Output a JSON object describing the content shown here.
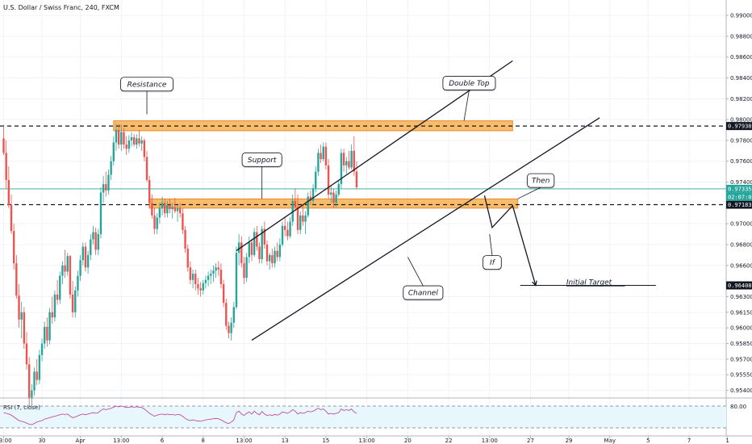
{
  "colors": {
    "up": "#26a69a",
    "down": "#ef5350",
    "zone": "#f7a53a",
    "last_price": "#26a69a",
    "rsi_line": "#c0379c",
    "rsi_band": "#e7f7fb",
    "line": "#131722"
  },
  "header": {
    "title": "U.S. Dollar / Swiss Franc, 240, FXCM"
  },
  "chart_data": {
    "type": "candlestick",
    "title": "U.S. Dollar / Swiss Franc, 240, FXCM",
    "ylim": [
      0.95327,
      0.99148
    ],
    "y_ticks": [
      "0.99000",
      "0.98800",
      "0.98600",
      "0.98400",
      "0.98200",
      "0.98000",
      "0.97800",
      "0.97600",
      "0.97400",
      "0.97000",
      "0.96800",
      "0.96600",
      "0.96300",
      "0.96150",
      "0.96000",
      "0.95850",
      "0.95700",
      "0.95550",
      "0.95400"
    ],
    "x_ticks": [
      "13:00",
      "30",
      "Apr",
      "13:00",
      "6",
      "8",
      "13:00",
      "13",
      "15",
      "13:00",
      "20",
      "22",
      "13:00",
      "27",
      "29",
      "May",
      "5",
      "7",
      "1"
    ],
    "x_tick_index": [
      0,
      15,
      30,
      46,
      62,
      78,
      94,
      110,
      126,
      142,
      158,
      174,
      190,
      206,
      221,
      237,
      252,
      268,
      283
    ],
    "levels": {
      "resistance": "0.97938",
      "support": "0.97183",
      "initial_target": "0.96408"
    },
    "last_price": {
      "value": "0.97335",
      "countdown": "02:07:01"
    },
    "zones": [
      {
        "label": "resistance-zone",
        "i0": 43,
        "i1": 199,
        "y0": 0.97988,
        "y1": 0.97893
      },
      {
        "label": "support-zone",
        "i0": 57,
        "i1": 201,
        "y0": 0.97238,
        "y1": 0.9715
      }
    ],
    "dashed_levels": [
      0.97938,
      0.97183
    ],
    "target_line": {
      "i0": 202,
      "i1": 255,
      "y": 0.96408
    },
    "channel": [
      {
        "i0": 91,
        "y0": 0.96742,
        "i1": 199,
        "y1": 0.98564
      },
      {
        "i0": 97,
        "y0": 0.95882,
        "i1": 233,
        "y1": 0.98017
      }
    ],
    "projection": [
      [
        188,
        0.9727
      ],
      [
        191,
        0.96964
      ],
      [
        199,
        0.97173
      ],
      [
        208,
        0.96408
      ]
    ],
    "annotations": [
      {
        "text": "Resistance",
        "i": 56,
        "y": 0.9834,
        "pi": 56,
        "py": 0.9805
      },
      {
        "text": "Double Top",
        "i": 182,
        "y": 0.9835,
        "pi": 180,
        "py": 0.9799
      },
      {
        "text": "Support",
        "i": 101,
        "y": 0.97615,
        "pi": 101,
        "py": 0.9724
      },
      {
        "text": "Then",
        "i": 210,
        "y": 0.97415,
        "pi": 201,
        "py": 0.9724
      },
      {
        "text": "If",
        "i": 191,
        "y": 0.96628,
        "pi": 190,
        "py": 0.969
      },
      {
        "text": "Channel",
        "i": 164,
        "y": 0.96338,
        "pi": 158,
        "py": 0.9668
      },
      {
        "text": "Initial Target",
        "i": 220,
        "y": 0.9644,
        "box": false
      }
    ],
    "candles": [
      [
        0.9782,
        0.9795,
        0.9766,
        0.9768
      ],
      [
        0.9768,
        0.978,
        0.9734,
        0.9742
      ],
      [
        0.9742,
        0.9755,
        0.9715,
        0.9718
      ],
      [
        0.9718,
        0.9728,
        0.969,
        0.9693
      ],
      [
        0.9693,
        0.97,
        0.9656,
        0.9662
      ],
      [
        0.9662,
        0.967,
        0.9628,
        0.9631
      ],
      [
        0.9631,
        0.9642,
        0.96,
        0.9608
      ],
      [
        0.9608,
        0.9625,
        0.959,
        0.9615
      ],
      [
        0.9615,
        0.962,
        0.958,
        0.9585
      ],
      [
        0.9585,
        0.9596,
        0.956,
        0.9565
      ],
      [
        0.9565,
        0.9572,
        0.9525,
        0.9532
      ],
      [
        0.9532,
        0.9546,
        0.952,
        0.954
      ],
      [
        0.954,
        0.9562,
        0.9535,
        0.9558
      ],
      [
        0.9558,
        0.957,
        0.9545,
        0.955
      ],
      [
        0.955,
        0.9579,
        0.9546,
        0.9574
      ],
      [
        0.9574,
        0.959,
        0.9568,
        0.9585
      ],
      [
        0.9585,
        0.9606,
        0.958,
        0.9601
      ],
      [
        0.9601,
        0.961,
        0.9582,
        0.9588
      ],
      [
        0.9588,
        0.9619,
        0.9584,
        0.9615
      ],
      [
        0.9615,
        0.963,
        0.9604,
        0.961
      ],
      [
        0.961,
        0.9636,
        0.9606,
        0.9632
      ],
      [
        0.9632,
        0.9646,
        0.9622,
        0.9627
      ],
      [
        0.9627,
        0.9654,
        0.9623,
        0.965
      ],
      [
        0.965,
        0.9664,
        0.9642,
        0.966
      ],
      [
        0.966,
        0.9675,
        0.9648,
        0.9654
      ],
      [
        0.9654,
        0.9672,
        0.965,
        0.9669
      ],
      [
        0.9669,
        0.967,
        0.9628,
        0.9632
      ],
      [
        0.9632,
        0.9645,
        0.961,
        0.9615
      ],
      [
        0.9615,
        0.964,
        0.961,
        0.9636
      ],
      [
        0.9636,
        0.9655,
        0.963,
        0.965
      ],
      [
        0.965,
        0.967,
        0.9645,
        0.9665
      ],
      [
        0.9665,
        0.9682,
        0.966,
        0.9678
      ],
      [
        0.9678,
        0.9682,
        0.9654,
        0.9658
      ],
      [
        0.9658,
        0.9674,
        0.9652,
        0.967
      ],
      [
        0.967,
        0.969,
        0.9665,
        0.9685
      ],
      [
        0.9685,
        0.9698,
        0.968,
        0.9692
      ],
      [
        0.9692,
        0.9696,
        0.967,
        0.9675
      ],
      [
        0.9675,
        0.9695,
        0.967,
        0.969
      ],
      [
        0.969,
        0.9735,
        0.9686,
        0.973
      ],
      [
        0.973,
        0.9746,
        0.972,
        0.9738
      ],
      [
        0.9738,
        0.975,
        0.9726,
        0.9732
      ],
      [
        0.9732,
        0.9752,
        0.9728,
        0.9747
      ],
      [
        0.9747,
        0.9765,
        0.9742,
        0.976
      ],
      [
        0.976,
        0.9784,
        0.9756,
        0.9778
      ],
      [
        0.9778,
        0.9796,
        0.977,
        0.979
      ],
      [
        0.979,
        0.9796,
        0.9772,
        0.9776
      ],
      [
        0.9776,
        0.9795,
        0.977,
        0.9788
      ],
      [
        0.9788,
        0.9792,
        0.9772,
        0.9776
      ],
      [
        0.9776,
        0.9784,
        0.9766,
        0.9772
      ],
      [
        0.9772,
        0.9785,
        0.9768,
        0.978
      ],
      [
        0.978,
        0.9788,
        0.9774,
        0.9783
      ],
      [
        0.9783,
        0.9786,
        0.9774,
        0.9776
      ],
      [
        0.9776,
        0.9786,
        0.9772,
        0.9782
      ],
      [
        0.9782,
        0.979,
        0.9774,
        0.9777
      ],
      [
        0.9777,
        0.9784,
        0.977,
        0.978
      ],
      [
        0.978,
        0.9782,
        0.976,
        0.9764
      ],
      [
        0.9764,
        0.977,
        0.974,
        0.9742
      ],
      [
        0.9742,
        0.9746,
        0.9715,
        0.972
      ],
      [
        0.972,
        0.9728,
        0.9705,
        0.9708
      ],
      [
        0.9708,
        0.9715,
        0.969,
        0.9695
      ],
      [
        0.9695,
        0.971,
        0.969,
        0.9706
      ],
      [
        0.9706,
        0.972,
        0.97,
        0.9715
      ],
      [
        0.9715,
        0.9726,
        0.9708,
        0.972
      ],
      [
        0.972,
        0.9724,
        0.9706,
        0.971
      ],
      [
        0.971,
        0.9722,
        0.9706,
        0.9718
      ],
      [
        0.9718,
        0.9724,
        0.971,
        0.9714
      ],
      [
        0.9714,
        0.972,
        0.9705,
        0.9716
      ],
      [
        0.9716,
        0.9725,
        0.971,
        0.9712
      ],
      [
        0.9712,
        0.9718,
        0.9702,
        0.9715
      ],
      [
        0.9715,
        0.972,
        0.9706,
        0.971
      ],
      [
        0.971,
        0.9715,
        0.969,
        0.9694
      ],
      [
        0.9694,
        0.9698,
        0.9672,
        0.9676
      ],
      [
        0.9676,
        0.968,
        0.9654,
        0.9658
      ],
      [
        0.9658,
        0.9664,
        0.9642,
        0.9646
      ],
      [
        0.9646,
        0.9656,
        0.9638,
        0.9652
      ],
      [
        0.9652,
        0.9656,
        0.9636,
        0.9642
      ],
      [
        0.9642,
        0.9648,
        0.9632,
        0.9638
      ],
      [
        0.9638,
        0.9644,
        0.963,
        0.9636
      ],
      [
        0.9636,
        0.9646,
        0.9632,
        0.9643
      ],
      [
        0.9643,
        0.965,
        0.9638,
        0.9646
      ],
      [
        0.9646,
        0.9654,
        0.964,
        0.965
      ],
      [
        0.965,
        0.9656,
        0.9642,
        0.9652
      ],
      [
        0.9652,
        0.966,
        0.9644,
        0.9655
      ],
      [
        0.9655,
        0.9662,
        0.9648,
        0.9658
      ],
      [
        0.9658,
        0.9664,
        0.965,
        0.9656
      ],
      [
        0.9656,
        0.9662,
        0.9638,
        0.9642
      ],
      [
        0.9642,
        0.9646,
        0.962,
        0.9624
      ],
      [
        0.9624,
        0.9628,
        0.9598,
        0.9602
      ],
      [
        0.9602,
        0.9606,
        0.959,
        0.9595
      ],
      [
        0.9595,
        0.961,
        0.9588,
        0.9605
      ],
      [
        0.9605,
        0.9625,
        0.96,
        0.962
      ],
      [
        0.962,
        0.9678,
        0.9618,
        0.9672
      ],
      [
        0.9672,
        0.969,
        0.966,
        0.9682
      ],
      [
        0.9682,
        0.9688,
        0.9658,
        0.9662
      ],
      [
        0.9662,
        0.9668,
        0.9642,
        0.9648
      ],
      [
        0.9648,
        0.9672,
        0.9644,
        0.9668
      ],
      [
        0.9668,
        0.9688,
        0.9662,
        0.9682
      ],
      [
        0.9682,
        0.9686,
        0.9664,
        0.967
      ],
      [
        0.967,
        0.9696,
        0.9668,
        0.9692
      ],
      [
        0.9692,
        0.9698,
        0.9674,
        0.9678
      ],
      [
        0.9678,
        0.9682,
        0.9662,
        0.9666
      ],
      [
        0.9666,
        0.9698,
        0.9662,
        0.9695
      ],
      [
        0.9695,
        0.9702,
        0.9676,
        0.968
      ],
      [
        0.968,
        0.9684,
        0.966,
        0.9664
      ],
      [
        0.9664,
        0.9672,
        0.9656,
        0.967
      ],
      [
        0.967,
        0.9676,
        0.9658,
        0.9662
      ],
      [
        0.9662,
        0.9678,
        0.9658,
        0.9674
      ],
      [
        0.9674,
        0.9682,
        0.9664,
        0.9668
      ],
      [
        0.9668,
        0.9686,
        0.9664,
        0.968
      ],
      [
        0.968,
        0.9702,
        0.9678,
        0.9698
      ],
      [
        0.9698,
        0.9706,
        0.9688,
        0.9694
      ],
      [
        0.9694,
        0.9702,
        0.9684,
        0.9688
      ],
      [
        0.9688,
        0.9706,
        0.9686,
        0.9702
      ],
      [
        0.9702,
        0.9728,
        0.9698,
        0.9722
      ],
      [
        0.9722,
        0.9734,
        0.9712,
        0.9716
      ],
      [
        0.9716,
        0.9728,
        0.969,
        0.9694
      ],
      [
        0.9694,
        0.9712,
        0.969,
        0.9708
      ],
      [
        0.9708,
        0.9718,
        0.9698,
        0.9702
      ],
      [
        0.9702,
        0.9712,
        0.969,
        0.9708
      ],
      [
        0.9708,
        0.973,
        0.9706,
        0.9726
      ],
      [
        0.9726,
        0.9732,
        0.9718,
        0.9722
      ],
      [
        0.9722,
        0.9738,
        0.9718,
        0.9734
      ],
      [
        0.9734,
        0.9755,
        0.973,
        0.975
      ],
      [
        0.975,
        0.9772,
        0.9746,
        0.9768
      ],
      [
        0.9768,
        0.9776,
        0.9758,
        0.9762
      ],
      [
        0.9762,
        0.9778,
        0.976,
        0.9774
      ],
      [
        0.9774,
        0.9778,
        0.9752,
        0.9756
      ],
      [
        0.9756,
        0.9762,
        0.9724,
        0.9728
      ],
      [
        0.9728,
        0.9736,
        0.972,
        0.973
      ],
      [
        0.973,
        0.9734,
        0.9715,
        0.972
      ],
      [
        0.972,
        0.9732,
        0.9716,
        0.9728
      ],
      [
        0.9728,
        0.9742,
        0.9726,
        0.9738
      ],
      [
        0.9738,
        0.9772,
        0.9734,
        0.9768
      ],
      [
        0.9768,
        0.9772,
        0.975,
        0.9756
      ],
      [
        0.9756,
        0.9764,
        0.9748,
        0.976
      ],
      [
        0.976,
        0.977,
        0.9752,
        0.9754
      ],
      [
        0.9754,
        0.9776,
        0.9752,
        0.977
      ],
      [
        0.977,
        0.9784,
        0.9746,
        0.975
      ],
      [
        0.975,
        0.976,
        0.9733,
        0.9735
      ]
    ]
  },
  "rsi": {
    "label": "RSI (7, close)",
    "upper": "80.00",
    "upper_value": 80,
    "lower_value": 20,
    "ylim": [
      0,
      100
    ],
    "values": [
      62,
      60,
      58,
      55,
      50,
      45,
      40,
      38,
      36,
      33,
      30,
      29,
      32,
      36,
      38,
      40,
      44,
      46,
      48,
      50,
      52,
      54,
      56,
      58,
      57,
      58,
      52,
      48,
      50,
      53,
      56,
      58,
      56,
      58,
      60,
      62,
      60,
      62,
      68,
      72,
      70,
      72,
      74,
      77,
      80,
      78,
      80,
      78,
      76,
      77,
      78,
      77,
      78,
      77,
      76,
      72,
      66,
      60,
      56,
      52,
      55,
      57,
      58,
      56,
      58,
      56,
      57,
      55,
      57,
      56,
      52,
      46,
      42,
      40,
      42,
      40,
      39,
      38,
      40,
      42,
      43,
      44,
      45,
      46,
      45,
      42,
      38,
      34,
      32,
      36,
      42,
      62,
      66,
      58,
      54,
      60,
      64,
      58,
      66,
      60,
      56,
      65,
      58,
      54,
      56,
      54,
      57,
      55,
      58,
      64,
      62,
      60,
      64,
      70,
      66,
      58,
      62,
      60,
      62,
      66,
      64,
      66,
      70,
      74,
      70,
      72,
      66,
      58,
      60,
      58,
      60,
      62,
      72,
      68,
      70,
      68,
      72,
      64,
      60
    ],
    "x_ticks": [
      "13:00",
      "30",
      "Apr",
      "13:00",
      "6",
      "8",
      "13:00",
      "13",
      "15",
      "13:00",
      "20",
      "22",
      "13:00",
      "27",
      "29",
      "May",
      "5",
      "7",
      "1"
    ]
  }
}
